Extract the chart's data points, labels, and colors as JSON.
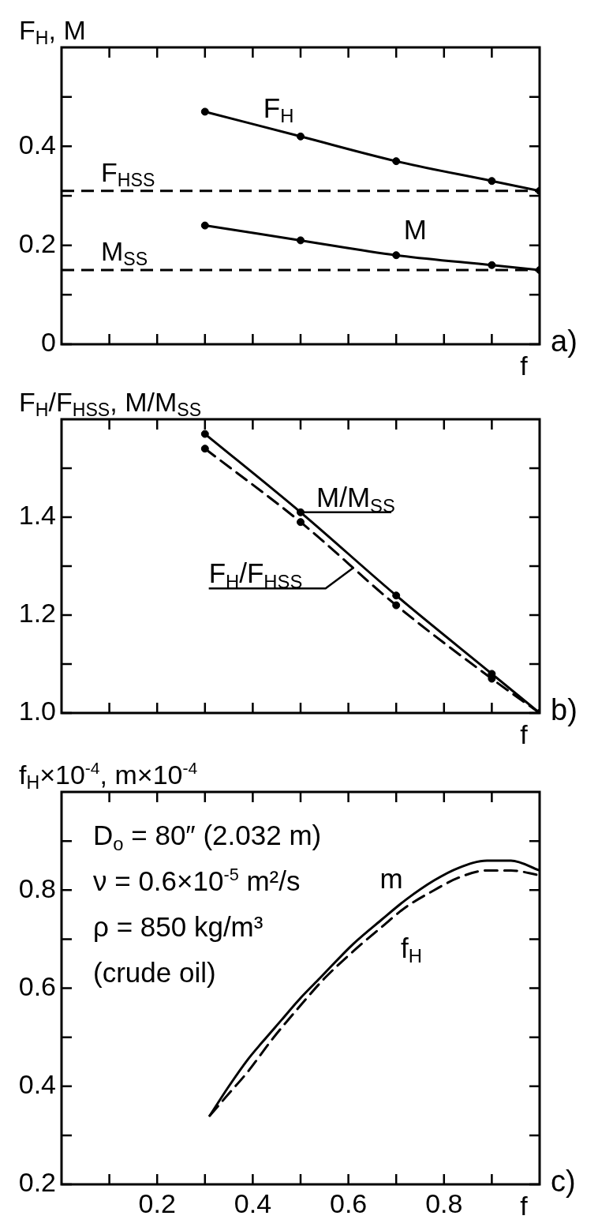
{
  "chart_data": [
    {
      "type": "line",
      "title": "a)",
      "xlabel": "f",
      "ylabel": "F$_{H}$, M",
      "x": [
        0.3,
        0.5,
        0.7,
        0.9,
        1.0
      ],
      "series": [
        {
          "name": "F$_{H}$",
          "color": "#000000",
          "values": [
            0.47,
            0.42,
            0.37,
            0.33,
            0.31
          ]
        },
        {
          "name": "M",
          "color": "#000000",
          "values": [
            0.24,
            0.21,
            0.18,
            0.16,
            0.15
          ]
        }
      ],
      "xlim": [
        0,
        1
      ],
      "xticks": [
        0.1,
        0.2,
        0.3,
        0.4,
        0.5,
        0.6,
        0.7,
        0.8,
        0.9
      ],
      "ylim": [
        0,
        0.6
      ],
      "yticks": [
        0,
        {
          "value": 0.1,
          "label": null
        },
        0.2,
        {
          "value": 0.3,
          "label": null
        },
        0.4,
        {
          "value": 0.5,
          "label": null
        }
      ],
      "ref_lines": [
        {
          "axis": "y",
          "value": 0.31,
          "label": "F$_{HSS}$",
          "color": "#000000",
          "line_style": "dashed"
        },
        {
          "axis": "y",
          "value": 0.15,
          "label": "M$_{SS}$",
          "color": "#000000",
          "line_style": "dashed"
        }
      ],
      "marker": "circle",
      "line_style": "solid",
      "tick_labels": "y"
    },
    {
      "type": "line",
      "title": "b)",
      "xlabel": "f",
      "ylabel": "F$_{H}$/F$_{HSS}$, M/M$_{SS}$",
      "x": [
        0.3,
        0.5,
        0.7,
        0.9,
        1.0
      ],
      "series": [
        {
          "name": "M/M$_{SS}$",
          "color": "#000000",
          "line_style": "solid",
          "values": [
            1.57,
            1.41,
            1.24,
            1.08,
            1.0
          ]
        },
        {
          "name": "F$_{H}$/F$_{HSS}$",
          "color": "#000000",
          "line_style": "dashed",
          "values": [
            1.54,
            1.39,
            1.22,
            1.07,
            1.0
          ]
        }
      ],
      "xlim": [
        0,
        1
      ],
      "xticks": [
        0.1,
        0.2,
        0.3,
        0.4,
        0.5,
        0.6,
        0.7,
        0.8,
        0.9
      ],
      "ylim": [
        1.0,
        1.6
      ],
      "yticks": [
        {
          "value": 1.0,
          "label": "1.0"
        },
        {
          "value": 1.1,
          "label": null
        },
        1.2,
        {
          "value": 1.3,
          "label": null
        },
        1.4,
        {
          "value": 1.5,
          "label": null
        }
      ],
      "marker": "circle",
      "tick_labels": "y"
    },
    {
      "type": "line",
      "title": "c)",
      "xlabel": "f",
      "ylabel": "f$_{H}$×10$^{-4}$, m×10$^{-4}$",
      "series": [
        {
          "name": "m",
          "color": "#000000",
          "line_style": "solid",
          "x": [
            0.31,
            0.35,
            0.39,
            0.42,
            0.46,
            0.5,
            0.54,
            0.61,
            0.67,
            0.72,
            0.78,
            0.83,
            0.89,
            0.94,
            1.0
          ],
          "values": [
            0.34,
            0.4,
            0.455,
            0.49,
            0.535,
            0.58,
            0.62,
            0.69,
            0.74,
            0.78,
            0.82,
            0.845,
            0.86,
            0.86,
            0.84
          ]
        },
        {
          "name": "f$_{H}$",
          "color": "#000000",
          "line_style": "dashed",
          "x": [
            0.31,
            0.35,
            0.39,
            0.44,
            0.5,
            0.55,
            0.61,
            0.67,
            0.72,
            0.78,
            0.83,
            0.89,
            0.94,
            1.0
          ],
          "values": [
            0.34,
            0.385,
            0.43,
            0.495,
            0.565,
            0.62,
            0.675,
            0.725,
            0.765,
            0.8,
            0.825,
            0.84,
            0.84,
            0.83
          ]
        }
      ],
      "xlim": [
        0,
        1
      ],
      "xticks": [
        {
          "value": 0.1,
          "label": null
        },
        0.2,
        {
          "value": 0.3,
          "label": null
        },
        0.4,
        {
          "value": 0.5,
          "label": null
        },
        0.6,
        {
          "value": 0.7,
          "label": null
        },
        0.8,
        {
          "value": 0.9,
          "label": null
        }
      ],
      "ylim": [
        0.2,
        1.0
      ],
      "yticks": [
        0.2,
        {
          "value": 0.3,
          "label": null
        },
        0.4,
        {
          "value": 0.5,
          "label": null
        },
        0.6,
        {
          "value": 0.7,
          "label": null
        },
        0.8,
        {
          "value": 0.9,
          "label": null
        }
      ],
      "annotations": [
        "D$_{o}$ = 80″ (2.032 m)",
        "ν = 0.6×10$^{-5}$ m²/s",
        "ρ = 850 kg/m³",
        "(crude oil)"
      ],
      "marker": "none"
    }
  ]
}
